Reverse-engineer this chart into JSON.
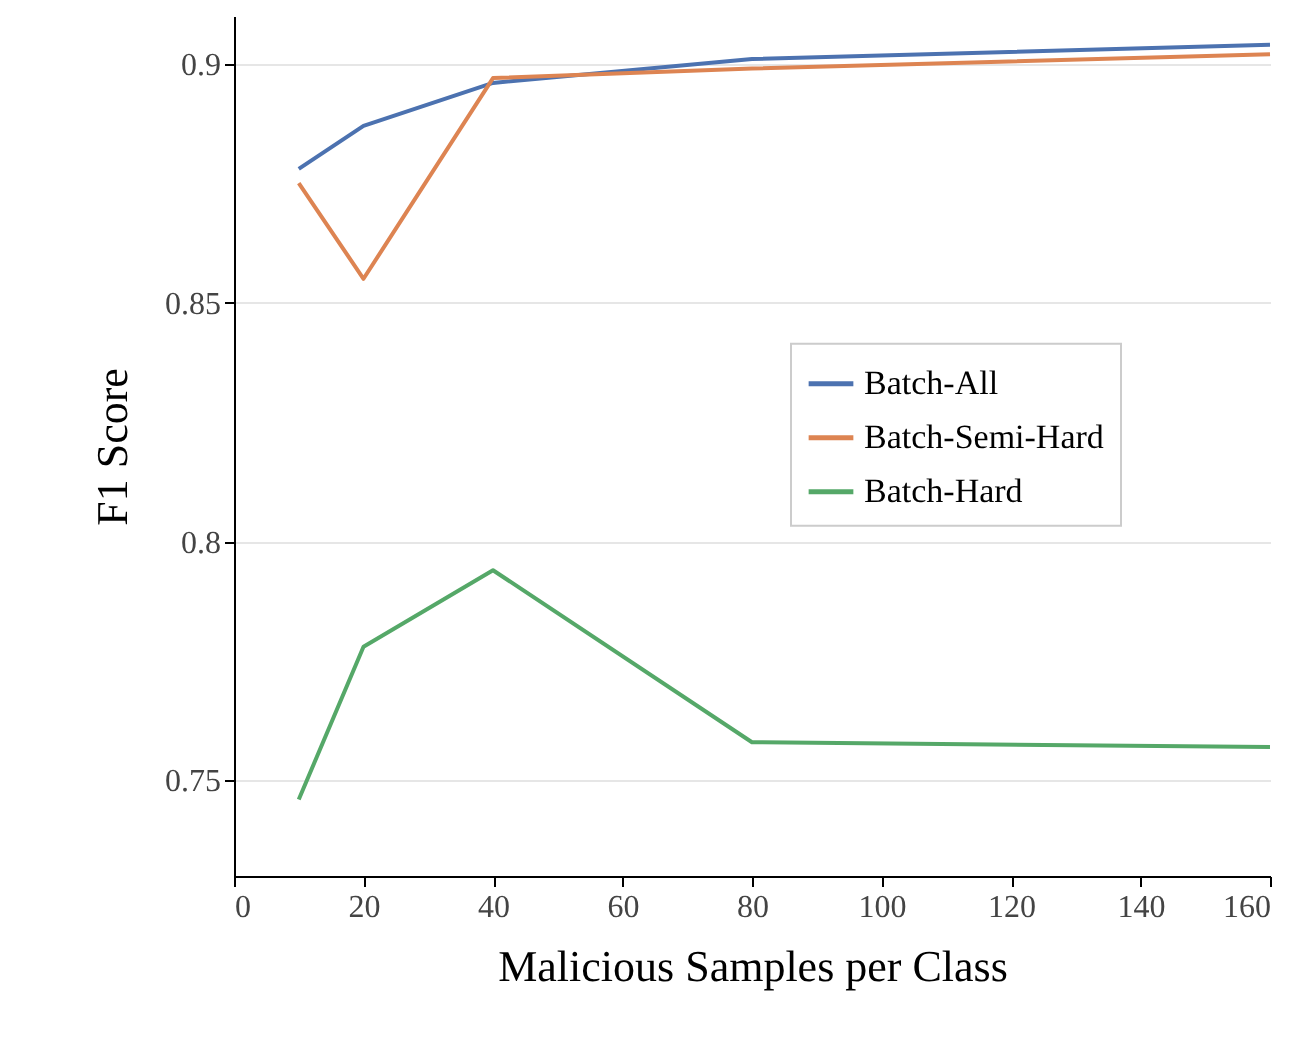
{
  "chart_data": {
    "type": "line",
    "xlabel": "Malicious Samples per Class",
    "ylabel": "F1 Score",
    "x": [
      10,
      20,
      40,
      80,
      160
    ],
    "series": [
      {
        "name": "Batch-All",
        "color": "#4c72b0",
        "values": [
          0.878,
          0.887,
          0.896,
          0.901,
          0.904
        ]
      },
      {
        "name": "Batch-Semi-Hard",
        "color": "#dd8452",
        "values": [
          0.875,
          0.855,
          0.897,
          0.899,
          0.902
        ]
      },
      {
        "name": "Batch-Hard",
        "color": "#55a868",
        "values": [
          0.746,
          0.778,
          0.794,
          0.758,
          0.757
        ]
      }
    ],
    "xlim": [
      0,
      160
    ],
    "xticks": [
      0,
      20,
      40,
      60,
      80,
      100,
      120,
      140,
      160
    ],
    "ylim": [
      0.73,
      0.91
    ],
    "yticks": [
      0.75,
      {
        "value": 0.8,
        "label": "0.8"
      },
      0.85,
      {
        "value": 0.9,
        "label": "0.9"
      }
    ],
    "grid": "y",
    "legend": "right",
    "marker": "none",
    "line_style": "solid"
  }
}
